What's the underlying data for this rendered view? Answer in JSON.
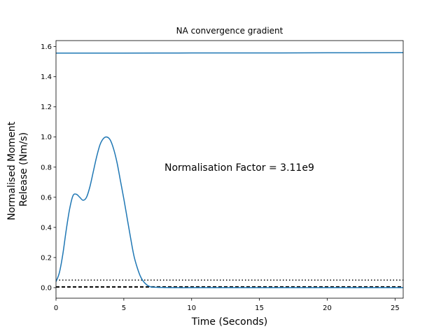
{
  "chart_data": {
    "type": "line",
    "title": "NA convergence gradient",
    "xlabel": "Time (Seconds)",
    "ylabel_lines": [
      "Normalised Moment",
      "Release (Nm/s)"
    ],
    "xlim": [
      0,
      25.6
    ],
    "ylim": [
      -0.07,
      1.64
    ],
    "xticks": [
      0,
      5,
      10,
      15,
      20,
      25
    ],
    "yticks": [
      0.0,
      0.2,
      0.4,
      0.6,
      0.8,
      1.0,
      1.2,
      1.4,
      1.6
    ],
    "annotation": {
      "text": "Normalisation Factor = 3.11e9",
      "x": 8.0,
      "y": 0.8
    },
    "line_color": "#1f77b4",
    "series": [
      {
        "x": [
          0,
          0.25,
          0.5,
          0.75,
          1.0,
          1.25,
          1.5,
          1.75,
          2.0,
          2.25,
          2.5,
          2.75,
          3.0,
          3.25,
          3.5,
          3.75,
          4.0,
          4.25,
          4.5,
          4.75,
          5.0,
          5.25,
          5.5,
          5.75,
          6.0,
          6.25,
          6.5,
          6.75,
          7.0,
          7.5,
          8.0,
          9.0,
          10,
          12,
          15,
          20,
          25.6
        ],
        "y": [
          0.04,
          0.1,
          0.22,
          0.38,
          0.52,
          0.61,
          0.62,
          0.6,
          0.58,
          0.6,
          0.67,
          0.77,
          0.87,
          0.95,
          0.99,
          1.0,
          0.98,
          0.92,
          0.83,
          0.71,
          0.59,
          0.46,
          0.33,
          0.21,
          0.13,
          0.07,
          0.035,
          0.015,
          0.005,
          0.002,
          0.001,
          0.0,
          0.0,
          0.0,
          0.0,
          0.0,
          0.0
        ]
      },
      {
        "x": [
          0,
          5,
          10,
          15,
          20,
          25.6
        ],
        "y": [
          1.557,
          1.557,
          1.558,
          1.558,
          1.559,
          1.56
        ]
      }
    ],
    "reference_lines": [
      {
        "y": 0.05,
        "style": "dotted",
        "color": "#000000"
      },
      {
        "y": 0.005,
        "style": "dashed",
        "color": "#000000"
      }
    ]
  }
}
